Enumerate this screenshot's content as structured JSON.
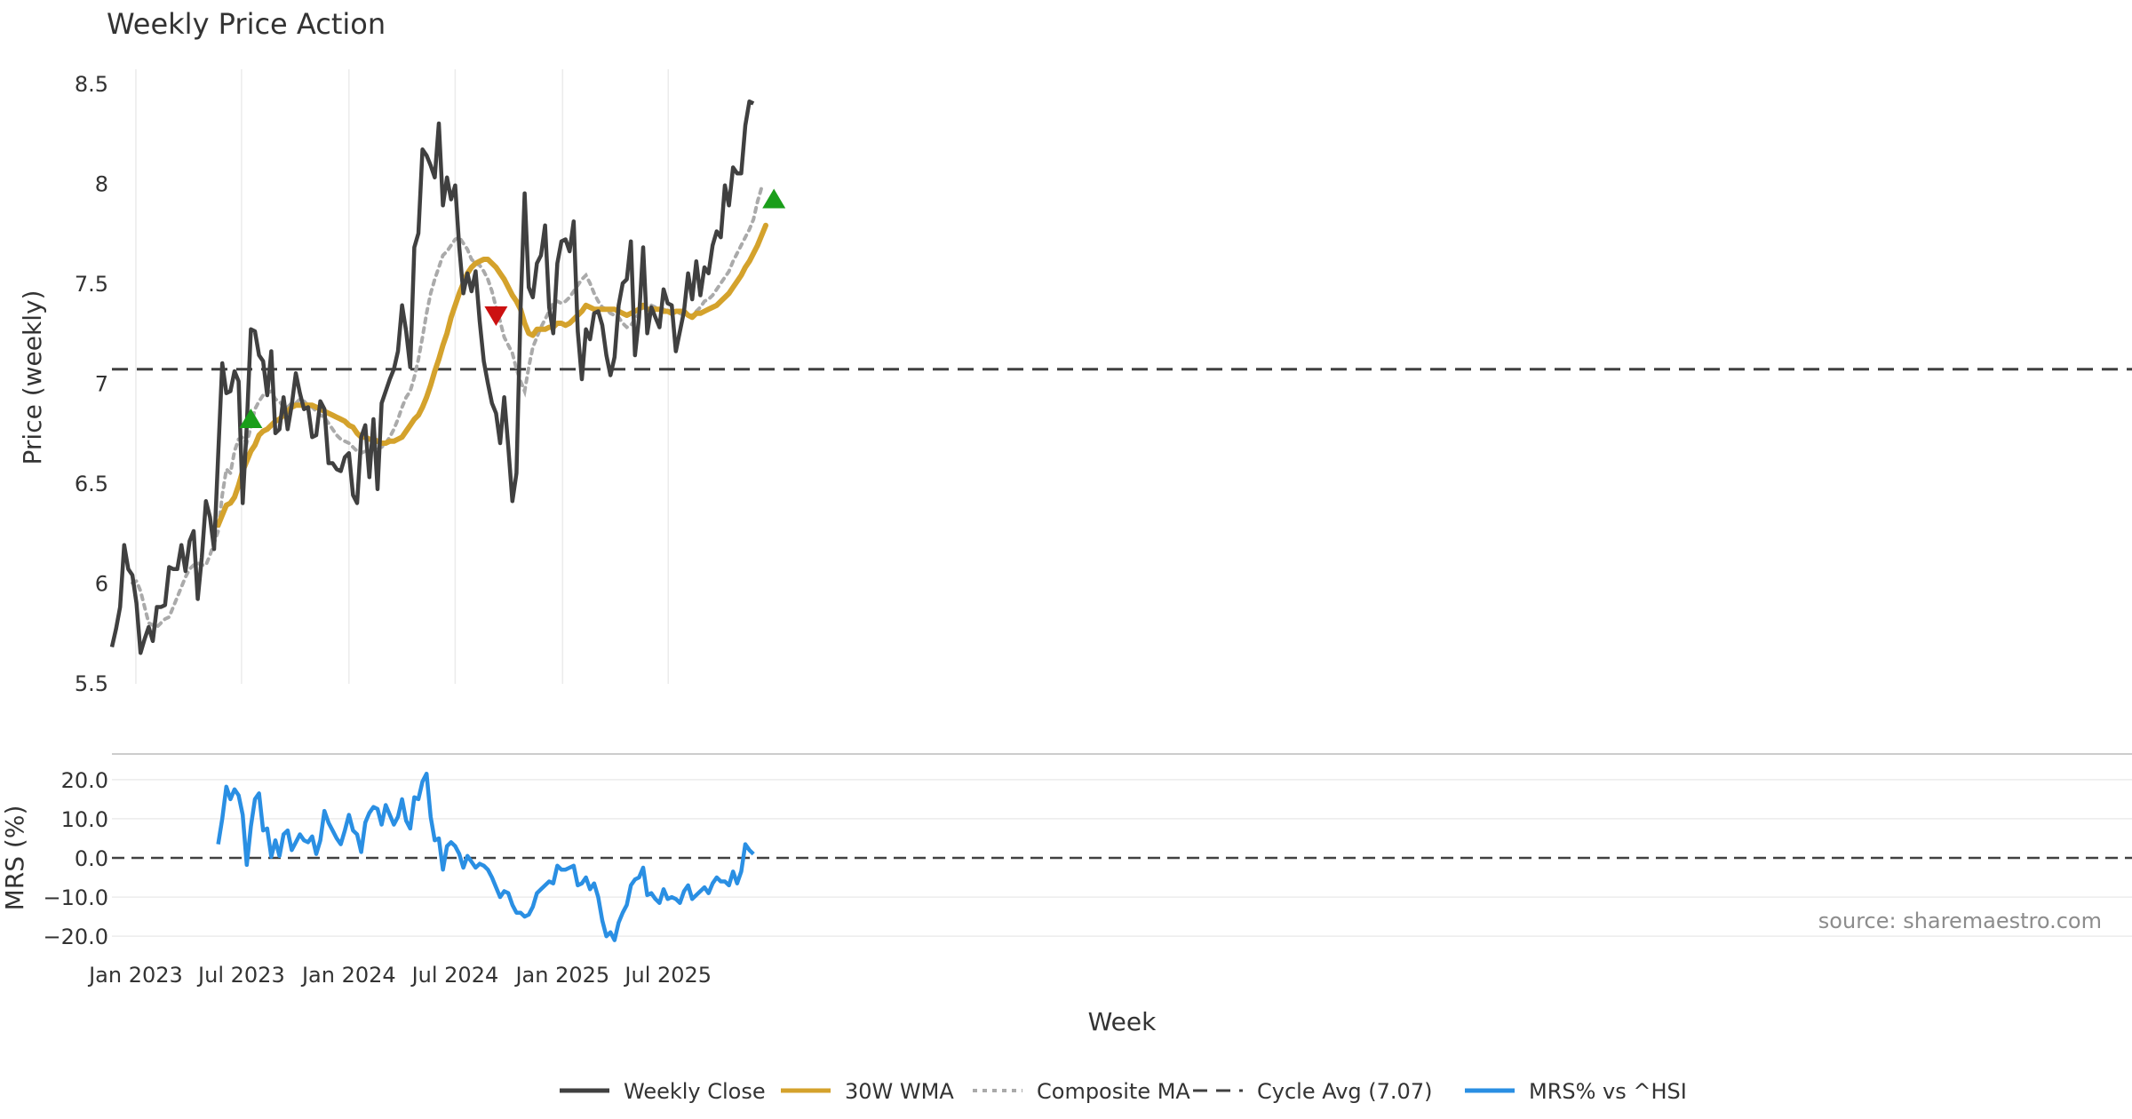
{
  "chart_data": {
    "type": "line",
    "title": "Weekly Price Action",
    "colors": {
      "close": "#404040",
      "wma": "#d4a22c",
      "composite": "#aaaaaa",
      "cycle": "#404040",
      "mrs": "#2a8fe3",
      "buy": "#1a9e1a",
      "sell": "#cc1111"
    },
    "price_panel": {
      "ylabel": "Price (weekly)",
      "ylim": [
        5.5,
        8.5
      ],
      "yticks": [
        5.5,
        6,
        6.5,
        7,
        7.5,
        8,
        8.5
      ],
      "ytick_labels": [
        "5.5",
        "6",
        "6.5",
        "7",
        "7.5",
        "8",
        "8.5"
      ],
      "cycle_avg": 7.07,
      "start_date": "2022-11-21",
      "series": [
        {
          "name": "Weekly Close",
          "values": [
            5.68,
            5.77,
            5.88,
            6.19,
            6.07,
            6.04,
            5.9,
            5.65,
            5.72,
            5.78,
            5.71,
            5.88,
            5.88,
            5.89,
            6.08,
            6.07,
            6.07,
            6.19,
            6.06,
            6.21,
            6.26,
            5.92,
            6.13,
            6.41,
            6.33,
            6.17,
            6.64,
            7.1,
            6.95,
            6.96,
            7.06,
            7.01,
            6.4,
            6.79,
            7.27,
            7.26,
            7.14,
            7.11,
            6.94,
            7.16,
            6.75,
            6.77,
            6.93,
            6.77,
            6.89,
            7.05,
            6.95,
            6.87,
            6.88,
            6.73,
            6.74,
            6.91,
            6.87,
            6.6,
            6.6,
            6.57,
            6.56,
            6.63,
            6.65,
            6.44,
            6.4,
            6.73,
            6.79,
            6.53,
            6.82,
            6.47,
            6.9,
            6.96,
            7.02,
            7.07,
            7.16,
            7.39,
            7.26,
            7.08,
            7.68,
            7.75,
            8.17,
            8.14,
            8.09,
            8.03,
            8.3,
            7.89,
            8.03,
            7.92,
            7.99,
            7.68,
            7.45,
            7.55,
            7.46,
            7.56,
            7.31,
            7.11,
            7.0,
            6.9,
            6.85,
            6.7,
            6.93,
            6.68,
            6.41,
            6.55,
            7.37,
            7.95,
            7.48,
            7.43,
            7.6,
            7.64,
            7.79,
            7.38,
            7.25,
            7.6,
            7.71,
            7.72,
            7.66,
            7.81,
            7.26,
            7.02,
            7.27,
            7.22,
            7.35,
            7.36,
            7.29,
            7.14,
            7.04,
            7.13,
            7.39,
            7.5,
            7.52,
            7.71,
            7.14,
            7.33,
            7.68,
            7.25,
            7.38,
            7.33,
            7.28,
            7.47,
            7.4,
            7.39,
            7.16,
            7.26,
            7.36,
            7.55,
            7.42,
            7.61,
            7.44,
            7.58,
            7.55,
            7.69,
            7.76,
            7.73,
            7.99,
            7.89,
            8.08,
            8.05,
            8.05,
            8.29,
            8.41,
            8.4
          ]
        },
        {
          "name": "30W WMA",
          "start_index": 26,
          "values": [
            6.29,
            6.34,
            6.39,
            6.4,
            6.43,
            6.49,
            6.56,
            6.61,
            6.66,
            6.69,
            6.74,
            6.76,
            6.77,
            6.79,
            6.81,
            6.82,
            6.84,
            6.86,
            6.88,
            6.89,
            6.89,
            6.89,
            6.89,
            6.89,
            6.88,
            6.87,
            6.86,
            6.85,
            6.84,
            6.83,
            6.82,
            6.81,
            6.79,
            6.78,
            6.75,
            6.73,
            6.73,
            6.72,
            6.72,
            6.71,
            6.7,
            6.7,
            6.71,
            6.71,
            6.72,
            6.73,
            6.76,
            6.79,
            6.82,
            6.84,
            6.88,
            6.93,
            6.99,
            7.06,
            7.12,
            7.19,
            7.25,
            7.33,
            7.39,
            7.45,
            7.5,
            7.55,
            7.58,
            7.6,
            7.61,
            7.62,
            7.62,
            7.6,
            7.58,
            7.55,
            7.52,
            7.48,
            7.44,
            7.41,
            7.37,
            7.3,
            7.25,
            7.24,
            7.27,
            7.27,
            7.27,
            7.28,
            7.28,
            7.3,
            7.3,
            7.29,
            7.3,
            7.32,
            7.34,
            7.36,
            7.39,
            7.38,
            7.37,
            7.37,
            7.37,
            7.37,
            7.37,
            7.37,
            7.36,
            7.35,
            7.34,
            7.35,
            7.36,
            7.37,
            7.39,
            7.37,
            7.37,
            7.37,
            7.37,
            7.36,
            7.36,
            7.35,
            7.36,
            7.36,
            7.36,
            7.34,
            7.33,
            7.35,
            7.35,
            7.36,
            7.37,
            7.38,
            7.39,
            7.41,
            7.43,
            7.45,
            7.48,
            7.51,
            7.54,
            7.58,
            7.61,
            7.65,
            7.69,
            7.74,
            7.79
          ]
        },
        {
          "name": "Composite MA",
          "start_index": 5,
          "values": [
            6.0,
            6.01,
            5.96,
            5.88,
            5.8,
            5.79,
            5.78,
            5.8,
            5.82,
            5.83,
            5.88,
            5.93,
            5.98,
            6.03,
            6.07,
            6.09,
            6.1,
            6.09,
            6.09,
            6.14,
            6.2,
            6.26,
            6.44,
            6.57,
            6.55,
            6.66,
            6.72,
            6.73,
            6.7,
            6.78,
            6.87,
            6.91,
            6.94,
            6.95,
            6.96,
            6.92,
            6.91,
            6.88,
            6.88,
            6.9,
            6.9,
            6.92,
            6.91,
            6.89,
            6.88,
            6.86,
            6.84,
            6.83,
            6.8,
            6.77,
            6.74,
            6.72,
            6.71,
            6.7,
            6.68,
            6.66,
            6.65,
            6.66,
            6.66,
            6.67,
            6.67,
            6.68,
            6.7,
            6.73,
            6.77,
            6.82,
            6.88,
            6.93,
            6.96,
            7.03,
            7.12,
            7.23,
            7.35,
            7.45,
            7.52,
            7.58,
            7.64,
            7.66,
            7.69,
            7.72,
            7.73,
            7.7,
            7.67,
            7.62,
            7.6,
            7.59,
            7.56,
            7.52,
            7.46,
            7.38,
            7.31,
            7.23,
            7.19,
            7.15,
            7.07,
            7.01,
            6.96,
            7.08,
            7.18,
            7.23,
            7.28,
            7.32,
            7.36,
            7.4,
            7.41,
            7.4,
            7.41,
            7.43,
            7.46,
            7.49,
            7.52,
            7.54,
            7.5,
            7.45,
            7.41,
            7.38,
            7.37,
            7.35,
            7.34,
            7.33,
            7.3,
            7.28,
            7.29,
            7.32,
            7.35,
            7.38,
            7.38,
            7.39,
            7.38,
            7.37,
            7.37,
            7.36,
            7.36,
            7.36,
            7.35,
            7.34,
            7.34,
            7.34,
            7.36,
            7.38,
            7.41,
            7.42,
            7.44,
            7.47,
            7.5,
            7.53,
            7.56,
            7.61,
            7.65,
            7.69,
            7.73,
            7.77,
            7.82,
            7.91,
            7.98
          ]
        }
      ],
      "signals": [
        {
          "type": "buy",
          "index": 34,
          "value": 6.82
        },
        {
          "type": "sell",
          "index": 94,
          "value": 7.34
        },
        {
          "type": "buy",
          "index": 162,
          "value": 7.92
        }
      ]
    },
    "mrs_panel": {
      "ylabel": "MRS (%)",
      "ylim": [
        -22,
        22
      ],
      "yticks": [
        -20,
        -10,
        0,
        10,
        20
      ],
      "ytick_labels": [
        "−20.0",
        "−10.0",
        "0.0",
        "10.0",
        "20.0"
      ],
      "series": {
        "name": "MRS% vs ^HSI",
        "start_index": 26,
        "values": [
          3.5,
          10.0,
          18.2,
          15.0,
          17.5,
          16.0,
          11.0,
          -1.8,
          8.0,
          15.0,
          16.5,
          7.0,
          7.5,
          0.3,
          4.5,
          0.5,
          6.0,
          7.0,
          2.0,
          4.0,
          6.0,
          4.5,
          4.0,
          5.5,
          1.0,
          4.5,
          12.0,
          9.0,
          7.0,
          5.0,
          3.5,
          7.0,
          11.0,
          7.0,
          6.0,
          1.5,
          9.0,
          11.5,
          13.0,
          12.5,
          8.5,
          13.5,
          11.0,
          8.5,
          10.5,
          15.0,
          9.5,
          7.5,
          15.5,
          15.0,
          19.5,
          21.5,
          10.5,
          4.5,
          5.0,
          -3.0,
          3.0,
          4.0,
          3.0,
          1.0,
          -2.5,
          0.5,
          -1.0,
          -2.5,
          -1.5,
          -2.0,
          -3.0,
          -5.0,
          -7.5,
          -10.0,
          -8.5,
          -9.0,
          -12.0,
          -14.0,
          -14.0,
          -15.0,
          -14.5,
          -12.5,
          -9.0,
          -8.0,
          -7.0,
          -6.0,
          -6.5,
          -2.0,
          -3.0,
          -3.0,
          -2.5,
          -2.0,
          -7.0,
          -6.5,
          -5.0,
          -8.0,
          -6.5,
          -10.0,
          -16.0,
          -20.0,
          -19.0,
          -21.0,
          -16.5,
          -14.0,
          -12.0,
          -7.0,
          -5.5,
          -5.0,
          -2.5,
          -9.5,
          -9.0,
          -10.5,
          -11.5,
          -8.0,
          -10.5,
          -10.0,
          -10.5,
          -11.5,
          -8.5,
          -7.0,
          -10.5,
          -9.5,
          -8.5,
          -7.5,
          -9.0,
          -6.5,
          -5.0,
          -6.0,
          -6.0,
          -7.0,
          -3.5,
          -6.5,
          -3.5,
          3.5,
          2.0,
          1.0
        ]
      }
    },
    "x_axis": {
      "xlabel": "Week",
      "tick_labels": [
        "Jan 2023",
        "Jul 2023",
        "Jan 2024",
        "Jul 2024",
        "Jan 2025",
        "Jul 2025"
      ],
      "tick_dates": [
        "2023-01-01",
        "2023-07-01",
        "2024-01-01",
        "2024-07-01",
        "2025-01-01",
        "2025-07-01"
      ],
      "vertical_grid": true
    },
    "legend": {
      "placement": "bottom-center",
      "entries": [
        {
          "label": "Weekly Close",
          "style": "solid",
          "color_key": "close"
        },
        {
          "label": "30W WMA",
          "style": "solid",
          "color_key": "wma"
        },
        {
          "label": "Composite MA",
          "style": "dotted",
          "color_key": "composite"
        },
        {
          "label": "Cycle Avg (7.07)",
          "style": "dashed",
          "color_key": "cycle"
        },
        {
          "label": "MRS% vs ^HSI",
          "style": "solid",
          "color_key": "mrs"
        }
      ]
    },
    "source": "source: sharemaestro.com"
  }
}
